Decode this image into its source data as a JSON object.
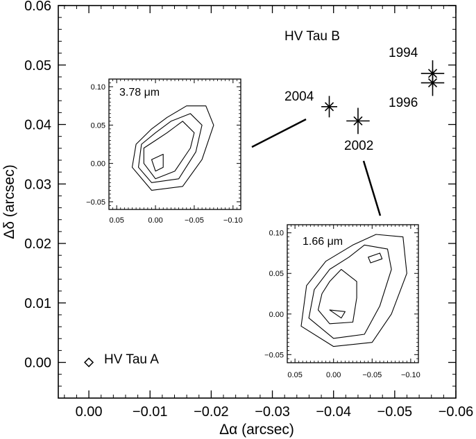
{
  "chart_data": {
    "type": "scatter",
    "xlabel": "Δα (arcsec)",
    "ylabel": "Δδ (arcsec)",
    "xlim": [
      0.005,
      -0.06
    ],
    "ylim": [
      -0.006,
      0.06
    ],
    "xticks": [
      0.0,
      -0.01,
      -0.02,
      -0.03,
      -0.04,
      -0.05,
      -0.06
    ],
    "xtick_labels": [
      "0.00",
      "−0.01",
      "−0.02",
      "−0.03",
      "−0.04",
      "−0.05",
      "−0.06"
    ],
    "yticks": [
      0.0,
      0.01,
      0.02,
      0.03,
      0.04,
      0.05,
      0.06
    ],
    "ytick_labels": [
      "0.00",
      "0.01",
      "0.02",
      "0.03",
      "0.04",
      "0.05",
      "0.06"
    ],
    "primary": {
      "name": "HV Tau A",
      "x": 0.0,
      "y": 0.0,
      "marker": "diamond"
    },
    "companion_label": "HV Tau B",
    "epochs": [
      {
        "year": "1994",
        "x": -0.0562,
        "y": 0.0486,
        "xerr": 0.0019,
        "yerr": 0.0022
      },
      {
        "year": "1996",
        "x": -0.0562,
        "y": 0.047,
        "xerr": 0.0019,
        "yerr": 0.0022
      },
      {
        "year": "2004",
        "x": -0.0393,
        "y": 0.043,
        "xerr": 0.0013,
        "yerr": 0.0018
      },
      {
        "year": "2002",
        "x": -0.044,
        "y": 0.0406,
        "xerr": 0.0019,
        "yerr": 0.0022
      }
    ],
    "insets": [
      {
        "label": "3.78 μm",
        "xlim": [
          0.06,
          -0.11
        ],
        "ylim": [
          -0.06,
          0.11
        ],
        "xticks": [
          0.05,
          0.0,
          -0.05,
          -0.1
        ],
        "xtick_labels": [
          "0.05",
          "0.00",
          "−0.05",
          "−0.10"
        ],
        "yticks": [
          -0.05,
          0.0,
          0.05,
          0.1
        ],
        "ytick_labels": [
          "−0.05",
          "0.00",
          "0.05",
          "0.10"
        ],
        "contours": [
          [
            [
              0.005,
              0.005
            ],
            [
              0.0,
              -0.01
            ],
            [
              -0.01,
              -0.005
            ],
            [
              -0.01,
              0.012
            ]
          ],
          [
            [
              0.015,
              0.0
            ],
            [
              0.0,
              -0.02
            ],
            [
              -0.025,
              -0.01
            ],
            [
              -0.045,
              0.02
            ],
            [
              -0.05,
              0.04
            ],
            [
              -0.035,
              0.055
            ],
            [
              -0.015,
              0.04
            ],
            [
              0.0,
              0.03
            ],
            [
              0.015,
              0.02
            ]
          ],
          [
            [
              0.022,
              -0.005
            ],
            [
              0.005,
              -0.025
            ],
            [
              -0.03,
              -0.02
            ],
            [
              -0.052,
              0.015
            ],
            [
              -0.06,
              0.05
            ],
            [
              -0.045,
              0.065
            ],
            [
              -0.02,
              0.055
            ],
            [
              0.0,
              0.04
            ],
            [
              0.018,
              0.025
            ]
          ],
          [
            [
              0.03,
              -0.005
            ],
            [
              0.005,
              -0.035
            ],
            [
              -0.035,
              -0.03
            ],
            [
              -0.06,
              0.005
            ],
            [
              -0.075,
              0.05
            ],
            [
              -0.065,
              0.075
            ],
            [
              -0.04,
              0.075
            ],
            [
              -0.015,
              0.06
            ],
            [
              0.005,
              0.045
            ],
            [
              0.025,
              0.025
            ]
          ]
        ]
      },
      {
        "label": "1.66 μm",
        "xlim": [
          0.06,
          -0.11
        ],
        "ylim": [
          -0.06,
          0.11
        ],
        "xticks": [
          0.05,
          0.0,
          -0.05,
          -0.1
        ],
        "xtick_labels": [
          "0.05",
          "0.00",
          "−0.05",
          "−0.10"
        ],
        "yticks": [
          -0.05,
          0.0,
          0.05,
          0.1
        ],
        "ytick_labels": [
          "−0.05",
          "0.00",
          "0.05",
          "0.10"
        ],
        "contours": [
          [
            [
              0.005,
              0.005
            ],
            [
              -0.01,
              -0.005
            ],
            [
              -0.015,
              0.003
            ]
          ],
          [
            [
              -0.045,
              0.07
            ],
            [
              -0.06,
              0.075
            ],
            [
              -0.063,
              0.068
            ],
            [
              -0.048,
              0.063
            ]
          ],
          [
            [
              0.02,
              0.005
            ],
            [
              0.005,
              -0.012
            ],
            [
              -0.025,
              -0.01
            ],
            [
              -0.03,
              0.02
            ],
            [
              -0.03,
              0.04
            ],
            [
              -0.01,
              0.055
            ],
            [
              0.005,
              0.04
            ],
            [
              0.015,
              0.025
            ]
          ],
          [
            [
              0.032,
              -0.005
            ],
            [
              0.0,
              -0.03
            ],
            [
              -0.04,
              -0.025
            ],
            [
              -0.06,
              0.01
            ],
            [
              -0.075,
              0.055
            ],
            [
              -0.07,
              0.08
            ],
            [
              -0.04,
              0.085
            ],
            [
              -0.02,
              0.07
            ],
            [
              0.005,
              0.055
            ],
            [
              0.025,
              0.03
            ]
          ],
          [
            [
              0.042,
              -0.015
            ],
            [
              0.0,
              -0.04
            ],
            [
              -0.05,
              -0.035
            ],
            [
              -0.075,
              0.0
            ],
            [
              -0.095,
              0.05
            ],
            [
              -0.09,
              0.095
            ],
            [
              -0.055,
              0.098
            ],
            [
              -0.025,
              0.085
            ],
            [
              0.01,
              0.065
            ],
            [
              0.035,
              0.035
            ]
          ]
        ]
      }
    ]
  }
}
